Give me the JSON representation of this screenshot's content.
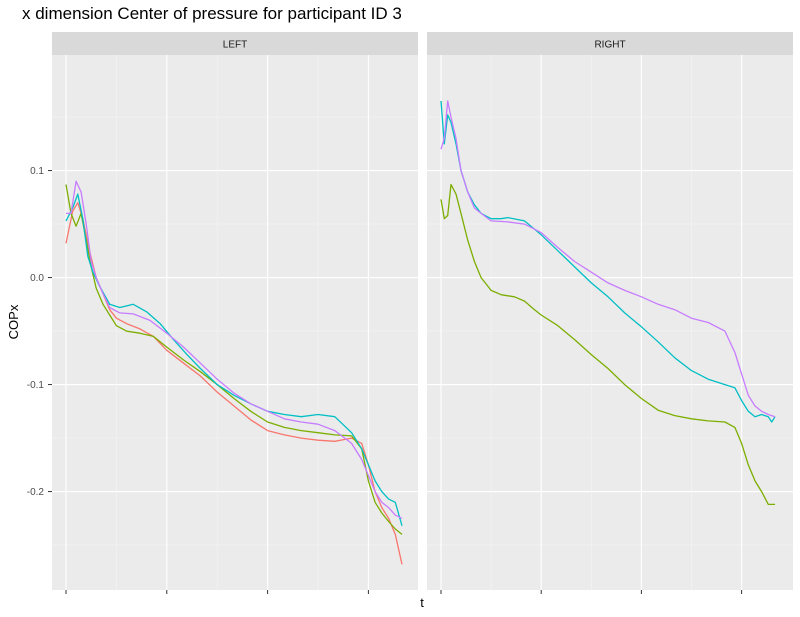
{
  "chart_data": {
    "type": "line",
    "title": "x dimension Center of pressure for participant ID 3",
    "xlabel": "t",
    "ylabel": "COPx",
    "ylim": [
      -0.292,
      0.208
    ],
    "y_ticks": [
      0.1,
      0.0,
      -0.1,
      -0.2
    ],
    "y_tick_labels": [
      "0.1",
      "0.0",
      "-0.1",
      "-0.2"
    ],
    "x_tick_labels_shown": false,
    "grid": true,
    "legend": "none",
    "panels": [
      {
        "name": "LEFT",
        "series": [
          {
            "color": "#F8766D",
            "x": [
              0.0,
              0.02,
              0.035,
              0.05,
              0.07,
              0.09,
              0.11,
              0.13,
              0.15,
              0.18,
              0.22,
              0.26,
              0.3,
              0.35,
              0.4,
              0.45,
              0.5,
              0.55,
              0.6,
              0.65,
              0.7,
              0.75,
              0.8,
              0.85,
              0.88,
              0.9,
              0.92,
              0.94,
              0.96,
              0.98,
              1.0
            ],
            "y": [
              0.032,
              0.062,
              0.07,
              0.055,
              0.025,
              0.0,
              -0.015,
              -0.03,
              -0.038,
              -0.043,
              -0.048,
              -0.055,
              -0.068,
              -0.08,
              -0.092,
              -0.107,
              -0.12,
              -0.133,
              -0.143,
              -0.147,
              -0.15,
              -0.152,
              -0.153,
              -0.15,
              -0.155,
              -0.175,
              -0.2,
              -0.215,
              -0.225,
              -0.24,
              -0.268
            ]
          },
          {
            "color": "#7CAE00",
            "x": [
              0.0,
              0.015,
              0.03,
              0.045,
              0.06,
              0.075,
              0.09,
              0.11,
              0.13,
              0.15,
              0.18,
              0.22,
              0.26,
              0.3,
              0.35,
              0.4,
              0.45,
              0.5,
              0.55,
              0.6,
              0.65,
              0.7,
              0.75,
              0.8,
              0.85,
              0.88,
              0.9,
              0.92,
              0.94,
              0.96,
              0.98,
              1.0
            ],
            "y": [
              0.087,
              0.06,
              0.048,
              0.06,
              0.035,
              0.01,
              -0.01,
              -0.025,
              -0.035,
              -0.045,
              -0.05,
              -0.052,
              -0.055,
              -0.065,
              -0.077,
              -0.088,
              -0.1,
              -0.113,
              -0.125,
              -0.135,
              -0.14,
              -0.143,
              -0.145,
              -0.147,
              -0.148,
              -0.16,
              -0.19,
              -0.21,
              -0.22,
              -0.228,
              -0.235,
              -0.24
            ]
          },
          {
            "color": "#00BFC4",
            "x": [
              0.0,
              0.02,
              0.035,
              0.05,
              0.065,
              0.08,
              0.1,
              0.13,
              0.16,
              0.2,
              0.24,
              0.28,
              0.32,
              0.36,
              0.4,
              0.45,
              0.5,
              0.55,
              0.6,
              0.65,
              0.7,
              0.75,
              0.8,
              0.85,
              0.88,
              0.9,
              0.92,
              0.94,
              0.96,
              0.98,
              1.0
            ],
            "y": [
              0.053,
              0.065,
              0.078,
              0.055,
              0.02,
              0.005,
              -0.008,
              -0.025,
              -0.028,
              -0.025,
              -0.032,
              -0.043,
              -0.058,
              -0.072,
              -0.085,
              -0.1,
              -0.11,
              -0.118,
              -0.125,
              -0.128,
              -0.13,
              -0.128,
              -0.13,
              -0.145,
              -0.16,
              -0.175,
              -0.19,
              -0.2,
              -0.207,
              -0.21,
              -0.232
            ]
          },
          {
            "color": "#C77CFF",
            "x": [
              0.0,
              0.015,
              0.03,
              0.045,
              0.06,
              0.075,
              0.09,
              0.11,
              0.13,
              0.16,
              0.2,
              0.25,
              0.3,
              0.35,
              0.4,
              0.45,
              0.5,
              0.55,
              0.6,
              0.65,
              0.7,
              0.75,
              0.8,
              0.85,
              0.88,
              0.9,
              0.92,
              0.94,
              0.96,
              0.98,
              1.0
            ],
            "y": [
              0.06,
              0.06,
              0.09,
              0.08,
              0.05,
              0.015,
              0.0,
              -0.015,
              -0.028,
              -0.033,
              -0.034,
              -0.04,
              -0.052,
              -0.065,
              -0.08,
              -0.095,
              -0.108,
              -0.118,
              -0.125,
              -0.132,
              -0.135,
              -0.137,
              -0.143,
              -0.155,
              -0.17,
              -0.185,
              -0.2,
              -0.21,
              -0.215,
              -0.222,
              -0.225
            ]
          }
        ]
      },
      {
        "name": "RIGHT",
        "series": [
          {
            "color": "#7CAE00",
            "x": [
              0.0,
              0.01,
              0.02,
              0.03,
              0.045,
              0.06,
              0.08,
              0.1,
              0.12,
              0.15,
              0.18,
              0.2,
              0.22,
              0.25,
              0.28,
              0.3,
              0.35,
              0.4,
              0.45,
              0.5,
              0.55,
              0.6,
              0.65,
              0.7,
              0.75,
              0.8,
              0.85,
              0.88,
              0.9,
              0.92,
              0.94,
              0.96,
              0.98,
              1.0
            ],
            "y": [
              0.073,
              0.055,
              0.058,
              0.087,
              0.078,
              0.06,
              0.035,
              0.015,
              0.0,
              -0.012,
              -0.016,
              -0.017,
              -0.018,
              -0.022,
              -0.03,
              -0.035,
              -0.045,
              -0.058,
              -0.072,
              -0.085,
              -0.1,
              -0.113,
              -0.124,
              -0.129,
              -0.132,
              -0.134,
              -0.135,
              -0.14,
              -0.155,
              -0.175,
              -0.19,
              -0.2,
              -0.212,
              -0.212
            ]
          },
          {
            "color": "#00BFC4",
            "x": [
              0.0,
              0.01,
              0.02,
              0.03,
              0.045,
              0.06,
              0.08,
              0.1,
              0.12,
              0.15,
              0.18,
              0.2,
              0.25,
              0.3,
              0.35,
              0.4,
              0.45,
              0.5,
              0.55,
              0.6,
              0.65,
              0.7,
              0.75,
              0.8,
              0.85,
              0.88,
              0.9,
              0.92,
              0.94,
              0.96,
              0.98,
              0.99,
              1.0
            ],
            "y": [
              0.165,
              0.125,
              0.152,
              0.145,
              0.125,
              0.1,
              0.08,
              0.068,
              0.06,
              0.055,
              0.055,
              0.056,
              0.053,
              0.04,
              0.025,
              0.01,
              -0.005,
              -0.018,
              -0.033,
              -0.046,
              -0.06,
              -0.075,
              -0.087,
              -0.095,
              -0.1,
              -0.103,
              -0.115,
              -0.125,
              -0.13,
              -0.128,
              -0.13,
              -0.135,
              -0.13
            ]
          },
          {
            "color": "#C77CFF",
            "x": [
              0.0,
              0.01,
              0.02,
              0.03,
              0.045,
              0.06,
              0.08,
              0.1,
              0.12,
              0.15,
              0.2,
              0.25,
              0.3,
              0.35,
              0.4,
              0.45,
              0.5,
              0.55,
              0.6,
              0.65,
              0.7,
              0.75,
              0.8,
              0.85,
              0.88,
              0.9,
              0.92,
              0.94,
              0.96,
              0.98,
              1.0
            ],
            "y": [
              0.12,
              0.13,
              0.165,
              0.15,
              0.13,
              0.1,
              0.08,
              0.065,
              0.06,
              0.053,
              0.052,
              0.05,
              0.042,
              0.028,
              0.015,
              0.005,
              -0.005,
              -0.012,
              -0.018,
              -0.025,
              -0.03,
              -0.038,
              -0.042,
              -0.05,
              -0.07,
              -0.09,
              -0.11,
              -0.12,
              -0.125,
              -0.128,
              -0.13
            ]
          }
        ]
      }
    ]
  }
}
